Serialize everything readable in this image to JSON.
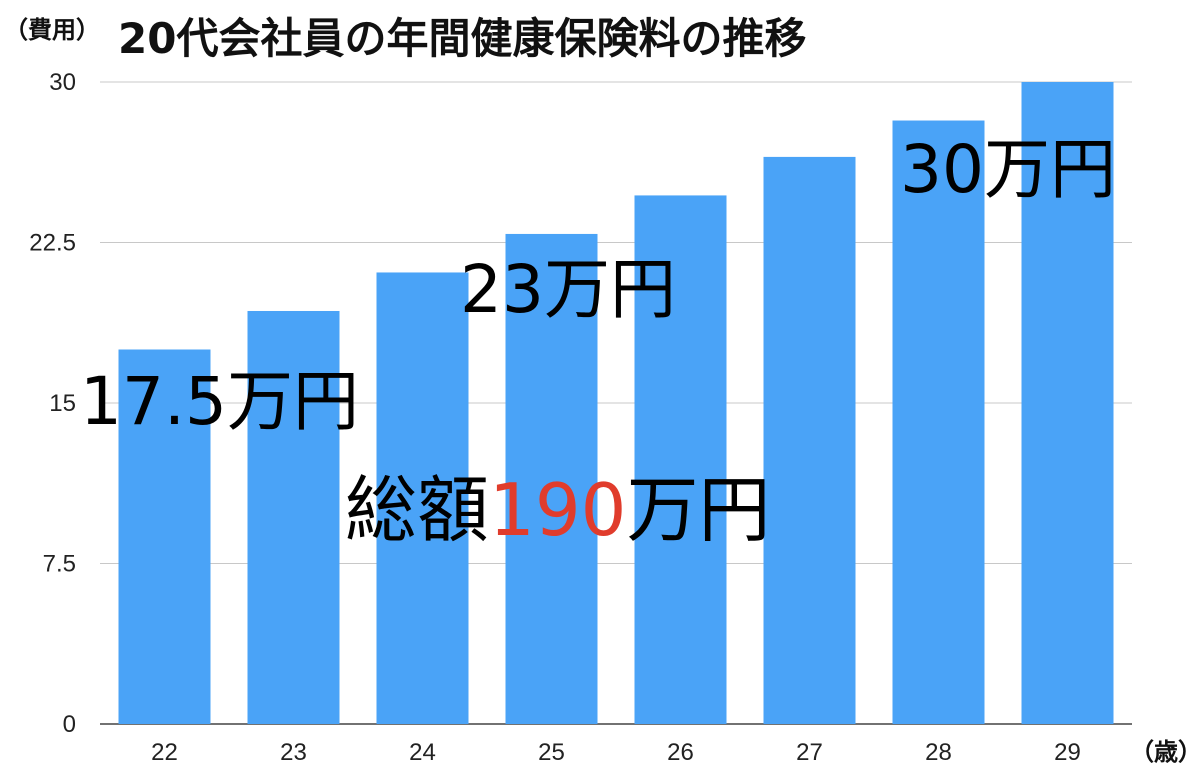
{
  "chart_data": {
    "type": "bar",
    "title": "20代会社員の年間健康保険料の推移",
    "ylabel": "（費用）",
    "xlabel": "（歳）",
    "categories": [
      "22",
      "23",
      "24",
      "25",
      "26",
      "27",
      "28",
      "29"
    ],
    "values": [
      17.5,
      19.3,
      21.1,
      22.9,
      24.7,
      26.5,
      28.2,
      30.0
    ],
    "ylim": [
      0,
      30
    ],
    "yticks": [
      "0",
      "7.5",
      "15",
      "22.5",
      "30"
    ],
    "grid": true,
    "bar_color": "#4aa3f7",
    "annotations": {
      "first": "17.5万円",
      "middle": "23万円",
      "last": "30万円",
      "total_prefix": "総額",
      "total_value": "190",
      "total_suffix": "万円",
      "total_value_color": "#e03c2c"
    }
  }
}
